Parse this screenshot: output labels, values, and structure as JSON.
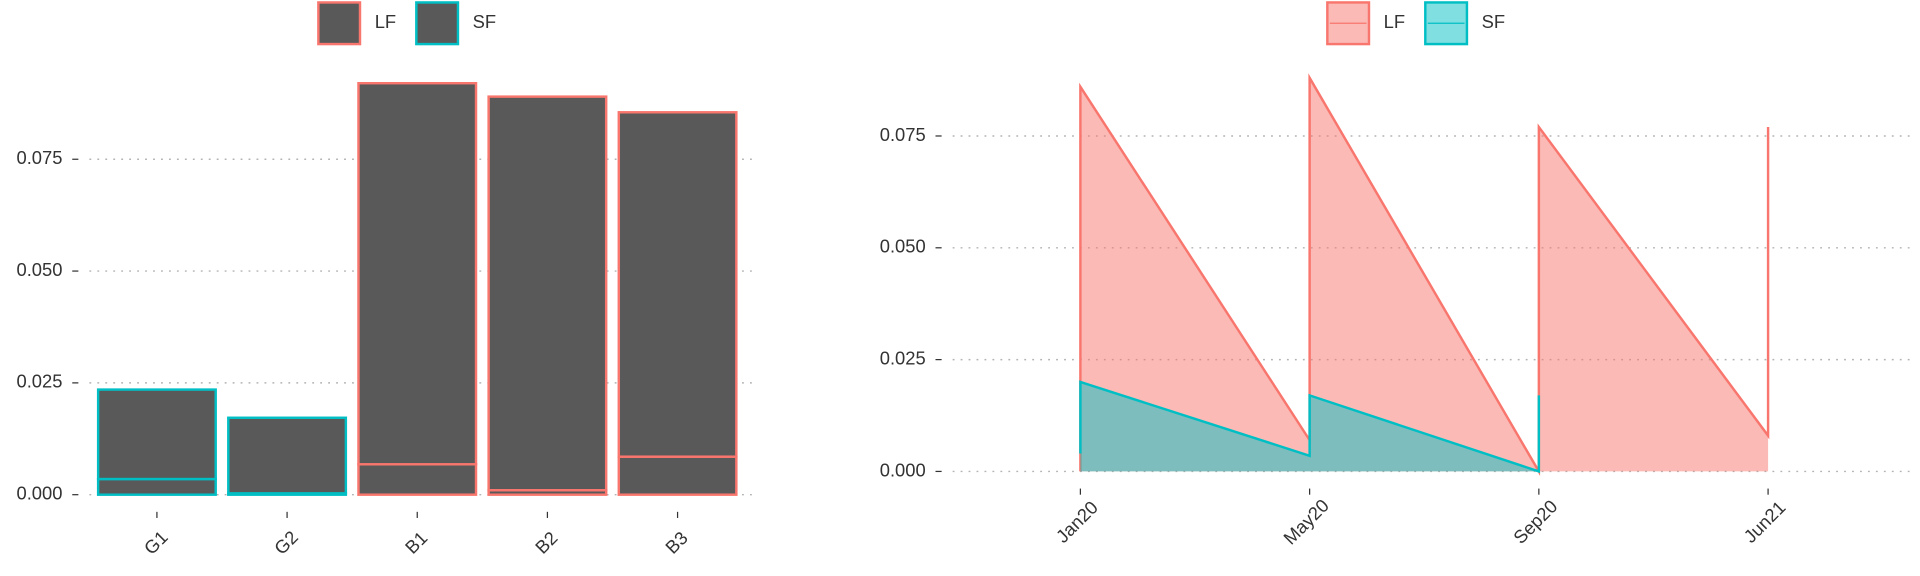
{
  "chart_data": [
    {
      "type": "stacked-bar",
      "categories": [
        "G1",
        "G2",
        "B1",
        "B2",
        "B3"
      ],
      "series": [
        {
          "name": "LF",
          "color": "#F8766D",
          "values": [
            null,
            null,
            [
              0.0068,
              0.0852
            ],
            [
              0.001,
              0.088
            ],
            [
              0.0085,
              0.077
            ]
          ]
        },
        {
          "name": "SF",
          "color": "#00BFC4",
          "values": [
            [
              0.0035,
              0.02
            ],
            [
              0.0003,
              0.0169
            ],
            null,
            null,
            null
          ]
        }
      ],
      "bar_fill": "#595959",
      "ylim": [
        0,
        0.095
      ],
      "yticks": [
        {
          "value": 0,
          "label": "0.000"
        },
        {
          "value": 0.025,
          "label": "0.025"
        },
        {
          "value": 0.05,
          "label": "0.050"
        },
        {
          "value": 0.075,
          "label": "0.075"
        }
      ],
      "grid": true
    },
    {
      "type": "area",
      "series": [
        {
          "name": "LF",
          "color": "#F8766D",
          "x": [
            0,
            0,
            1,
            1,
            2,
            2,
            3,
            3
          ],
          "values": [
            0,
            0.086,
            0.007,
            0.088,
            0,
            0.077,
            0.008,
            0.077
          ]
        },
        {
          "name": "SF",
          "color": "#00BFC4",
          "x": [
            0,
            0,
            1,
            1,
            2,
            2
          ],
          "values": [
            0.004,
            0.02,
            0.0035,
            0.017,
            0,
            0.017
          ]
        }
      ],
      "xlim": [
        -0.6,
        3.62
      ],
      "xticks": [
        {
          "value": 0,
          "label": "Jan20"
        },
        {
          "value": 1,
          "label": "May20"
        },
        {
          "value": 2,
          "label": "Sep20"
        },
        {
          "value": 3,
          "label": "Jun21"
        }
      ],
      "ylim": [
        0,
        0.095
      ],
      "yticks": [
        {
          "value": 0,
          "label": "0.000"
        },
        {
          "value": 0.025,
          "label": "0.025"
        },
        {
          "value": 0.05,
          "label": "0.050"
        },
        {
          "value": 0.075,
          "label": "0.075"
        }
      ],
      "grid": true
    }
  ]
}
